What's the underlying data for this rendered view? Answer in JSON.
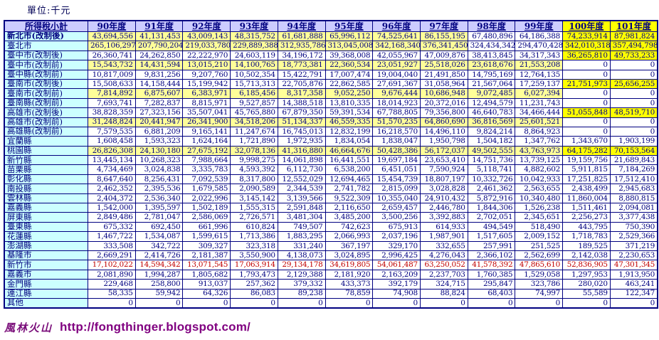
{
  "unit_label": "單位:千元",
  "colors": {
    "header_bg": "#ccccff",
    "label_bg": "#ccffff",
    "pale_highlight": "#ffff99",
    "bright_highlight": "#ffff00",
    "text_navy": "#000080",
    "text_red": "#c00000",
    "footer_purple": "#800080",
    "border": "#000080"
  },
  "table": {
    "header_label": "所得稅小計",
    "years": [
      "90年度",
      "91年度",
      "92年度",
      "93年度",
      "94年度",
      "95年度",
      "96年度",
      "97年度",
      "98年度",
      "99年度",
      "100年度",
      "101年度"
    ],
    "bright_year_cols": [
      10,
      11
    ],
    "rows": [
      {
        "label": "新北市(改制後)",
        "bold": true,
        "red": false,
        "pale": 8,
        "bright": true,
        "values": [
          "43,694,556",
          "41,131,453",
          "43,009,143",
          "48,315,752",
          "61,681,888",
          "65,996,112",
          "74,525,641",
          "86,155,195",
          "67,480,896",
          "64,186,388",
          "74,233,914",
          "87,981,824"
        ]
      },
      {
        "label": "臺北市",
        "bold": false,
        "red": false,
        "pale": 8,
        "bright": true,
        "values": [
          "265,106,297",
          "207,790,204",
          "219,033,780",
          "229,889,388",
          "312,935,786",
          "313,045,008",
          "342,168,340",
          "376,341,450",
          "324,434,342",
          "294,470,428",
          "342,010,318",
          "357,494,798"
        ]
      },
      {
        "label": "臺中市(改制後)",
        "bold": false,
        "red": false,
        "pale": 0,
        "bright": true,
        "values": [
          "26,360,741",
          "24,262,850",
          "22,222,970",
          "24,603,119",
          "34,196,172",
          "39,368,008",
          "42,055,967",
          "47,009,876",
          "38,413,845",
          "34,317,343",
          "36,265,810",
          "49,733,233"
        ]
      },
      {
        "label": "臺中市(改制前)",
        "bold": false,
        "red": false,
        "pale": 10,
        "bright": false,
        "values": [
          "15,543,732",
          "14,431,594",
          "13,015,210",
          "14,100,765",
          "18,773,381",
          "22,360,534",
          "23,051,927",
          "25,518,026",
          "23,618,676",
          "21,553,208",
          "0",
          "0"
        ]
      },
      {
        "label": "臺中縣(改制前)",
        "bold": false,
        "red": false,
        "pale": 0,
        "bright": false,
        "values": [
          "10,817,009",
          "9,831,256",
          "9,207,760",
          "10,502,354",
          "15,422,791",
          "17,007,474",
          "19,004,040",
          "21,491,850",
          "14,795,169",
          "12,764,135",
          "0",
          "0"
        ]
      },
      {
        "label": "臺南市(改制後)",
        "bold": false,
        "red": false,
        "pale": 0,
        "bright": true,
        "values": [
          "15,508,633",
          "14,158,444",
          "15,199,942",
          "15,713,313",
          "22,705,876",
          "22,862,585",
          "27,691,367",
          "31,058,964",
          "21,567,064",
          "17,259,137",
          "21,751,973",
          "25,656,255"
        ]
      },
      {
        "label": "臺南市(改制前)",
        "bold": false,
        "red": false,
        "pale": 10,
        "bright": false,
        "values": [
          "7,814,892",
          "6,875,607",
          "6,383,971",
          "6,185,456",
          "8,317,358",
          "9,052,250",
          "9,676,444",
          "10,686,948",
          "9,072,485",
          "6,027,394",
          "0",
          "0"
        ]
      },
      {
        "label": "臺南縣(改制前)",
        "bold": false,
        "red": false,
        "pale": 0,
        "bright": false,
        "values": [
          "7,693,741",
          "7,282,837",
          "8,815,971",
          "9,527,857",
          "14,388,518",
          "13,810,335",
          "18,014,923",
          "20,372,016",
          "12,494,579",
          "11,231,743",
          "0",
          "0"
        ]
      },
      {
        "label": "高雄市(改制後)",
        "bold": false,
        "red": false,
        "pale": 0,
        "bright": true,
        "values": [
          "38,828,359",
          "27,323,156",
          "35,507,041",
          "45,765,880",
          "67,879,350",
          "59,391,534",
          "67,788,805",
          "79,356,800",
          "46,640,783",
          "34,466,444",
          "51,055,848",
          "48,519,710"
        ]
      },
      {
        "label": "高雄市(改制前)",
        "bold": false,
        "red": false,
        "pale": 10,
        "bright": false,
        "values": [
          "31,248,824",
          "20,441,947",
          "26,341,900",
          "34,518,206",
          "51,134,337",
          "46,559,335",
          "51,570,235",
          "64,860,690",
          "36,816,569",
          "25,601,521",
          "0",
          "0"
        ]
      },
      {
        "label": "高雄縣(改制前)",
        "bold": false,
        "red": false,
        "pale": 0,
        "bright": false,
        "values": [
          "7,579,535",
          "6,881,209",
          "9,165,141",
          "11,247,674",
          "16,745,013",
          "12,832,199",
          "16,218,570",
          "14,496,110",
          "9,824,214",
          "8,864,923",
          "0",
          "0"
        ]
      },
      {
        "label": "宜蘭縣",
        "bold": false,
        "red": false,
        "pale": 0,
        "bright": false,
        "values": [
          "1,608,458",
          "1,593,323",
          "1,624,164",
          "1,721,890",
          "1,972,935",
          "1,834,054",
          "1,838,047",
          "1,950,798",
          "1,504,182",
          "1,347,762",
          "1,343,670",
          "1,903,199"
        ]
      },
      {
        "label": "桃園縣",
        "bold": false,
        "red": false,
        "pale": 10,
        "bright": true,
        "values": [
          "26,826,308",
          "24,130,180",
          "27,675,192",
          "32,078,136",
          "41,316,880",
          "46,664,676",
          "50,428,386",
          "56,172,037",
          "49,502,555",
          "43,763,973",
          "64,175,282",
          "70,153,564"
        ]
      },
      {
        "label": "新竹縣",
        "bold": false,
        "red": false,
        "pale": 0,
        "bright": false,
        "values": [
          "13,445,134",
          "10,268,323",
          "7,988,664",
          "9,998,275",
          "14,061,898",
          "16,441,551",
          "19,697,184",
          "23,653,410",
          "14,751,736",
          "13,739,125",
          "19,159,756",
          "21,689,843"
        ]
      },
      {
        "label": "苗栗縣",
        "bold": false,
        "red": false,
        "pale": 0,
        "bright": false,
        "values": [
          "4,734,469",
          "3,024,838",
          "3,335,783",
          "4,593,392",
          "6,112,730",
          "6,538,200",
          "6,451,051",
          "7,590,924",
          "5,118,741",
          "4,882,602",
          "5,911,815",
          "7,184,269"
        ]
      },
      {
        "label": "彰化縣",
        "bold": false,
        "red": false,
        "pale": 0,
        "bright": false,
        "values": [
          "8,647,640",
          "8,256,431",
          "7,092,539",
          "8,317,800",
          "12,552,029",
          "12,694,465",
          "15,454,739",
          "18,807,197",
          "10,332,726",
          "10,042,933",
          "17,251,825",
          "17,512,410"
        ]
      },
      {
        "label": "南投縣",
        "bold": false,
        "red": false,
        "pale": 0,
        "bright": false,
        "values": [
          "2,462,352",
          "2,395,536",
          "1,679,585",
          "2,090,589",
          "2,344,539",
          "2,741,782",
          "2,815,099",
          "3,028,828",
          "2,461,362",
          "2,563,655",
          "2,438,499",
          "2,945,683"
        ]
      },
      {
        "label": "雲林縣",
        "bold": false,
        "red": false,
        "pale": 0,
        "bright": false,
        "values": [
          "2,404,372",
          "2,536,340",
          "2,022,996",
          "3,145,142",
          "3,139,566",
          "9,522,309",
          "10,355,040",
          "24,910,432",
          "5,872,916",
          "10,340,480",
          "11,860,004",
          "8,880,815"
        ]
      },
      {
        "label": "嘉義縣",
        "bold": false,
        "red": false,
        "pale": 0,
        "bright": false,
        "values": [
          "1,542,000",
          "1,395,597",
          "1,502,189",
          "1,555,315",
          "2,591,848",
          "2,116,650",
          "2,659,457",
          "2,446,780",
          "1,844,306",
          "1,526,238",
          "1,511,461",
          "2,094,081"
        ]
      },
      {
        "label": "屏東縣",
        "bold": false,
        "red": false,
        "pale": 0,
        "bright": false,
        "values": [
          "2,849,486",
          "2,781,047",
          "2,586,069",
          "2,726,571",
          "3,481,304",
          "3,485,200",
          "3,500,256",
          "3,392,883",
          "2,702,051",
          "2,345,651",
          "2,256,273",
          "3,377,438"
        ]
      },
      {
        "label": "臺東縣",
        "bold": false,
        "red": false,
        "pale": 0,
        "bright": false,
        "values": [
          "675,332",
          "692,450",
          "661,996",
          "610,824",
          "749,507",
          "742,623",
          "675,913",
          "614,933",
          "494,549",
          "518,490",
          "443,795",
          "750,390"
        ]
      },
      {
        "label": "花蓮縣",
        "bold": false,
        "red": false,
        "pale": 0,
        "bright": false,
        "values": [
          "1,467,722",
          "1,534,087",
          "1,599,615",
          "1,713,386",
          "1,883,295",
          "2,066,993",
          "2,037,196",
          "1,987,901",
          "1,517,605",
          "2,009,152",
          "1,718,783",
          "2,529,366"
        ]
      },
      {
        "label": "澎湖縣",
        "bold": false,
        "red": false,
        "pale": 0,
        "bright": false,
        "values": [
          "333,508",
          "342,722",
          "309,327",
          "323,318",
          "331,240",
          "367,197",
          "329,170",
          "332,655",
          "257,991",
          "251,525",
          "189,525",
          "371,219"
        ]
      },
      {
        "label": "基隆市",
        "bold": false,
        "red": false,
        "pale": 0,
        "bright": false,
        "values": [
          "2,669,291",
          "2,414,726",
          "2,181,387",
          "3,550,900",
          "4,138,073",
          "3,024,895",
          "2,996,425",
          "4,276,043",
          "2,366,102",
          "2,562,699",
          "2,142,038",
          "2,230,653"
        ]
      },
      {
        "label": "新竹市",
        "bold": false,
        "red": true,
        "pale": 0,
        "bright": false,
        "values": [
          "17,102,022",
          "14,594,342",
          "13,071,545",
          "17,063,914",
          "29,134,178",
          "34,619,805",
          "54,061,487",
          "63,250,052",
          "41,578,392",
          "47,865,610",
          "52,836,905",
          "47,301,345"
        ]
      },
      {
        "label": "嘉義市",
        "bold": false,
        "red": false,
        "pale": 0,
        "bright": false,
        "values": [
          "2,081,890",
          "1,994,287",
          "1,805,682",
          "1,793,473",
          "2,129,388",
          "2,181,920",
          "2,163,209",
          "2,237,703",
          "1,760,385",
          "1,529,058",
          "1,297,953",
          "1,913,950"
        ]
      },
      {
        "label": "金門縣",
        "bold": false,
        "red": false,
        "pale": 0,
        "bright": false,
        "values": [
          "229,468",
          "258,800",
          "913,037",
          "257,362",
          "379,332",
          "433,373",
          "392,179",
          "324,715",
          "295,847",
          "323,786",
          "280,020",
          "463,241"
        ]
      },
      {
        "label": "連江縣",
        "bold": false,
        "red": false,
        "pale": 0,
        "bright": false,
        "values": [
          "58,335",
          "59,942",
          "64,326",
          "86,083",
          "89,238",
          "78,859",
          "74,908",
          "88,824",
          "68,403",
          "74,997",
          "55,589",
          "122,347"
        ]
      },
      {
        "label": "其他",
        "bold": false,
        "red": false,
        "pale": 0,
        "bright": false,
        "values": [
          "0",
          "0",
          "0",
          "0",
          "0",
          "0",
          "0",
          "0",
          "0",
          "0",
          "0",
          "0"
        ]
      }
    ]
  },
  "footer": {
    "brand": "風林火山",
    "url": "http://fongthinger.blogspot.com/"
  }
}
